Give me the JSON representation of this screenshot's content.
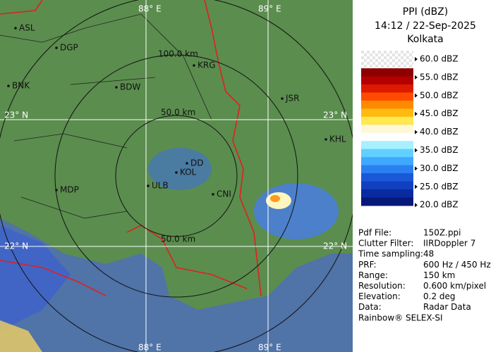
{
  "header": {
    "title": "PPI (dBZ)",
    "time": "14:12 / 22-Sep-2025",
    "station": "Kolkata"
  },
  "legend": [
    "60.0 dBZ",
    "55.0 dBZ",
    "50.0 dBZ",
    "45.0 dBZ",
    "40.0 dBZ",
    "35.0 dBZ",
    "30.0 dBZ",
    "25.0 dBZ",
    "20.0 dBZ"
  ],
  "info": [
    [
      "Pdf File:",
      "150Z.ppi"
    ],
    [
      "Clutter Filter:",
      "IIRDoppler 7"
    ],
    [
      "Time sampling:",
      "48"
    ],
    [
      "PRF:",
      "600 Hz / 450 Hz"
    ],
    [
      "Range:",
      "150 km"
    ],
    [
      "Resolution:",
      "0.600 km/pixel"
    ],
    [
      "Elevation:",
      "0.2 deg"
    ],
    [
      "Data:",
      "Radar Data"
    ]
  ],
  "footer": "Rainbow® SELEX-SI",
  "map": {
    "grid_labels": [
      "88° E",
      "89° E",
      "23° N",
      "23° N",
      "22° N",
      "22° N",
      "88° E",
      "89° E"
    ],
    "ring_labels": [
      "100.0 km",
      "50.0 km",
      "50.0 km"
    ],
    "cities": [
      "ASL",
      "DGP",
      "BNK",
      "BDW",
      "KRG",
      "JSR",
      "KHL",
      "MDP",
      "DD",
      "KOL",
      "ULB",
      "CNI"
    ]
  }
}
